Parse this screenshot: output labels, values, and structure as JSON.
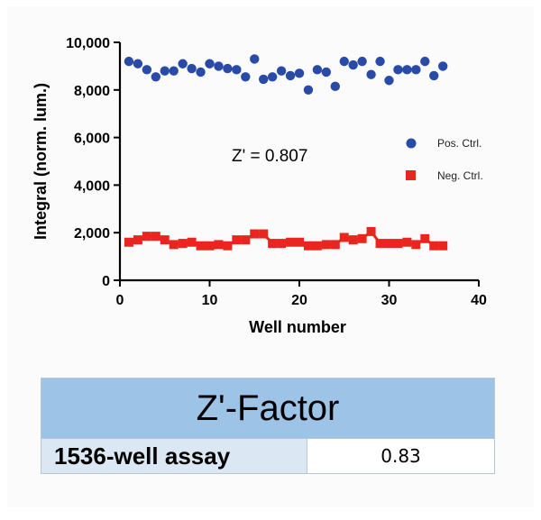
{
  "chart_data": {
    "type": "scatter",
    "xlabel": "Well number",
    "ylabel": "Integral (norm. lum.)",
    "xlim": [
      0,
      40
    ],
    "ylim": [
      0,
      10000
    ],
    "x_ticks": [
      0,
      10,
      20,
      30,
      40
    ],
    "y_ticks": [
      0,
      2000,
      4000,
      6000,
      8000,
      10000
    ],
    "x_tick_labels": [
      "0",
      "10",
      "20",
      "30",
      "40"
    ],
    "y_tick_labels": [
      "0",
      "2,000",
      "4,000",
      "6,000",
      "8,000",
      "10,000"
    ],
    "grid": false,
    "legend_position": "right",
    "annotation": "Z' = 0.807",
    "series": [
      {
        "name": "Pos. Ctrl.",
        "marker": "circle",
        "color": "#2a4aa8",
        "x": [
          1,
          2,
          3,
          4,
          5,
          6,
          7,
          8,
          9,
          10,
          11,
          12,
          13,
          14,
          15,
          16,
          17,
          18,
          19,
          20,
          21,
          22,
          23,
          24,
          25,
          26,
          27,
          28,
          29,
          30,
          31,
          32,
          33,
          34,
          35,
          36
        ],
        "y": [
          9200,
          9100,
          8850,
          8550,
          8800,
          8800,
          9100,
          8900,
          8750,
          9100,
          9000,
          8900,
          8850,
          8550,
          9300,
          8450,
          8550,
          8800,
          8600,
          8700,
          8000,
          8850,
          8750,
          8150,
          9200,
          9050,
          9200,
          8650,
          9200,
          8400,
          8850,
          8850,
          8850,
          9200,
          8600,
          9000
        ]
      },
      {
        "name": "Neg. Ctrl.",
        "marker": "square",
        "color": "#e8251e",
        "x": [
          1,
          2,
          3,
          4,
          5,
          6,
          7,
          8,
          9,
          10,
          11,
          12,
          13,
          14,
          15,
          16,
          17,
          18,
          19,
          20,
          21,
          22,
          23,
          24,
          25,
          26,
          27,
          28,
          29,
          30,
          31,
          32,
          33,
          34,
          35,
          36
        ],
        "y": [
          1600,
          1700,
          1850,
          1850,
          1700,
          1500,
          1550,
          1600,
          1450,
          1450,
          1500,
          1450,
          1700,
          1700,
          1950,
          1950,
          1550,
          1550,
          1600,
          1600,
          1450,
          1450,
          1500,
          1500,
          1800,
          1700,
          1750,
          2050,
          1550,
          1550,
          1550,
          1600,
          1500,
          1750,
          1450,
          1450
        ]
      }
    ]
  },
  "table": {
    "header": "Z'-Factor",
    "rows": [
      {
        "label": "1536-well assay",
        "value": "0.83"
      }
    ]
  }
}
